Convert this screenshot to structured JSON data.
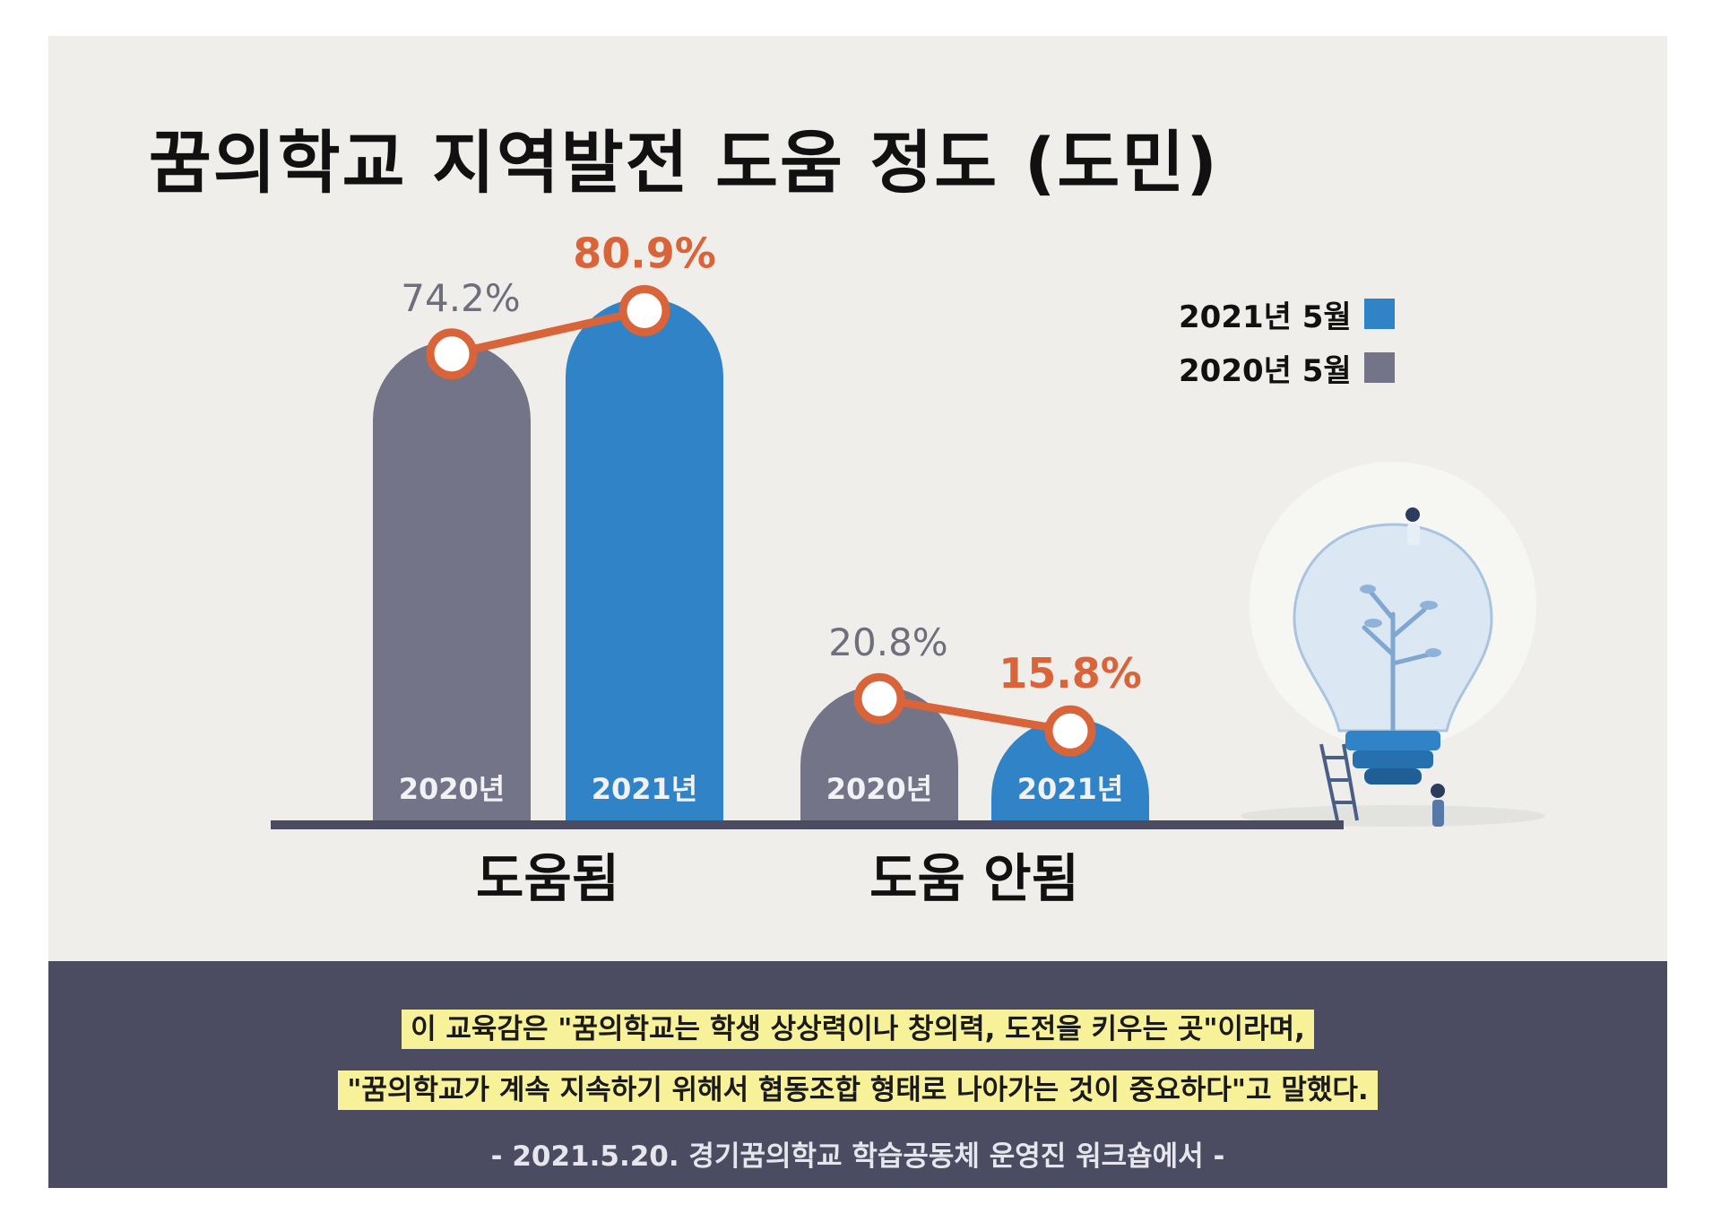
{
  "title": "꿈의학교 지역발전 도움 정도 (도민)",
  "colors": {
    "series_2020": "#747488",
    "series_2021": "#2f83c6",
    "connector": "#d9643a",
    "value_label_2020": "#6f6f7c",
    "value_label_2021": "#d9643a",
    "panel": "#4b4c61",
    "highlight": "#f7f19a"
  },
  "legend": [
    {
      "label": "2021년 5월",
      "color": "#2f83c6"
    },
    {
      "label": "2020년 5월",
      "color": "#747488"
    }
  ],
  "chart_data": {
    "type": "bar",
    "title": "꿈의학교 지역발전 도움 정도 (도민)",
    "categories": [
      "도움됨",
      "도움 안됨"
    ],
    "series": [
      {
        "name": "2020년 5월",
        "bar_label": "2020년",
        "values": [
          74.2,
          20.8
        ],
        "value_labels": [
          "74.2%",
          "20.8%"
        ]
      },
      {
        "name": "2021년 5월",
        "bar_label": "2021년",
        "values": [
          80.9,
          15.8
        ],
        "value_labels": [
          "80.9%",
          "15.8%"
        ]
      }
    ],
    "ylim": [
      0,
      100
    ],
    "grid": false,
    "legend_position": "top-right",
    "connector_lines": true
  },
  "quote": {
    "line1": "이 교육감은 \"꿈의학교는 학생 상상력이나 창의력, 도전을 키우는 곳\"이라며,",
    "line2": "\"꿈의학교가 계속 지속하기 위해서 협동조합 형태로 나아가는 것이 중요하다\"고 말했다.",
    "source": "- 2021.5.20. 경기꿈의학교 학습공동체 운영진 워크숍에서 -"
  }
}
